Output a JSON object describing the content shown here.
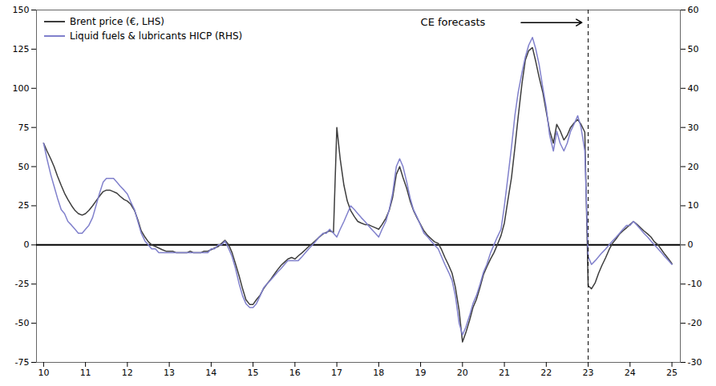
{
  "chart_data": {
    "type": "line",
    "x": [
      10.0,
      10.08,
      10.17,
      10.25,
      10.33,
      10.42,
      10.5,
      10.58,
      10.67,
      10.75,
      10.83,
      10.92,
      11.0,
      11.08,
      11.17,
      11.25,
      11.33,
      11.42,
      11.5,
      11.58,
      11.67,
      11.75,
      11.83,
      11.92,
      12.0,
      12.08,
      12.17,
      12.25,
      12.33,
      12.42,
      12.5,
      12.58,
      12.67,
      12.75,
      12.83,
      12.92,
      13.0,
      13.08,
      13.17,
      13.25,
      13.33,
      13.42,
      13.5,
      13.58,
      13.67,
      13.75,
      13.83,
      13.92,
      14.0,
      14.08,
      14.17,
      14.25,
      14.33,
      14.42,
      14.5,
      14.58,
      14.67,
      14.75,
      14.83,
      14.92,
      15.0,
      15.08,
      15.17,
      15.25,
      15.33,
      15.42,
      15.5,
      15.58,
      15.67,
      15.75,
      15.83,
      15.92,
      16.0,
      16.08,
      16.17,
      16.25,
      16.33,
      16.42,
      16.5,
      16.58,
      16.67,
      16.75,
      16.83,
      16.92,
      17.0,
      17.08,
      17.17,
      17.25,
      17.33,
      17.42,
      17.5,
      17.58,
      17.67,
      17.75,
      17.83,
      17.92,
      18.0,
      18.08,
      18.17,
      18.25,
      18.33,
      18.42,
      18.5,
      18.58,
      18.67,
      18.75,
      18.83,
      18.92,
      19.0,
      19.08,
      19.17,
      19.25,
      19.33,
      19.42,
      19.5,
      19.58,
      19.67,
      19.75,
      19.83,
      19.92,
      20.0,
      20.08,
      20.17,
      20.25,
      20.33,
      20.42,
      20.5,
      20.58,
      20.67,
      20.75,
      20.83,
      20.92,
      21.0,
      21.08,
      21.17,
      21.25,
      21.33,
      21.42,
      21.5,
      21.58,
      21.67,
      21.75,
      21.83,
      21.92,
      22.0,
      22.08,
      22.17,
      22.25,
      22.33,
      22.42,
      22.5,
      22.58,
      22.67,
      22.75,
      22.83,
      22.92,
      23.0,
      23.08,
      23.17,
      23.25,
      23.33,
      23.42,
      23.5,
      23.58,
      23.67,
      23.75,
      23.83,
      23.92,
      24.0,
      24.08,
      24.17,
      24.25,
      24.33,
      24.42,
      24.5,
      24.58,
      24.67,
      24.75,
      24.83,
      24.92,
      25.0
    ],
    "series": [
      {
        "name": "Brent price (€, LHS)",
        "color": "#3d3d3d",
        "axis": "y",
        "values": [
          65,
          60,
          55,
          50,
          44,
          38,
          33,
          29,
          25,
          22,
          20,
          19,
          20,
          22,
          25,
          28,
          31,
          34,
          35,
          35,
          34,
          33,
          31,
          29,
          28,
          26,
          22,
          16,
          9,
          5,
          2,
          0,
          -1,
          -2,
          -3,
          -4,
          -4,
          -4,
          -5,
          -5,
          -5,
          -5,
          -4,
          -5,
          -5,
          -5,
          -4,
          -4,
          -3,
          -2,
          -1,
          1,
          3,
          0,
          -5,
          -12,
          -20,
          -28,
          -35,
          -38,
          -38,
          -35,
          -32,
          -28,
          -25,
          -22,
          -19,
          -16,
          -13,
          -11,
          -9,
          -8,
          -9,
          -7,
          -5,
          -3,
          -1,
          1,
          3,
          5,
          7,
          8,
          9,
          8,
          75,
          55,
          38,
          28,
          22,
          18,
          15,
          14,
          13,
          13,
          12,
          11,
          10,
          13,
          17,
          22,
          30,
          45,
          50,
          43,
          36,
          28,
          22,
          17,
          13,
          9,
          6,
          4,
          2,
          1,
          -3,
          -8,
          -13,
          -18,
          -27,
          -42,
          -62,
          -56,
          -48,
          -40,
          -35,
          -27,
          -19,
          -14,
          -9,
          -5,
          0,
          6,
          14,
          28,
          43,
          62,
          82,
          103,
          118,
          124,
          126,
          117,
          107,
          97,
          85,
          73,
          65,
          77,
          73,
          67,
          70,
          75,
          78,
          80,
          77,
          72,
          -26,
          -28,
          -24,
          -18,
          -13,
          -8,
          -3,
          1,
          4,
          7,
          9,
          11,
          13,
          15,
          13,
          11,
          9,
          7,
          5,
          2,
          0,
          -3,
          -6,
          -9,
          -12
        ]
      },
      {
        "name": "Liquid fuels & lubricants HICP (RHS)",
        "color": "#8080cc",
        "axis": "y2",
        "values": [
          26,
          22,
          18,
          15,
          12,
          9,
          8,
          6,
          5,
          4,
          3,
          3,
          4,
          5,
          7,
          10,
          13,
          16,
          17,
          17,
          17,
          16,
          15,
          14,
          13,
          11,
          9,
          6,
          3,
          1,
          0,
          -1,
          -1,
          -2,
          -2,
          -2,
          -2,
          -2,
          -2,
          -2,
          -2,
          -2,
          -2,
          -2,
          -2,
          -2,
          -2,
          -2,
          -1,
          -1,
          0,
          0,
          1,
          -1,
          -3,
          -6,
          -10,
          -13,
          -15,
          -16,
          -16,
          -15,
          -13,
          -11,
          -10,
          -9,
          -8,
          -7,
          -6,
          -5,
          -4,
          -4,
          -4,
          -4,
          -3,
          -2,
          -1,
          0,
          1,
          2,
          3,
          3,
          4,
          3,
          2,
          4,
          6,
          8,
          10,
          9,
          8,
          7,
          6,
          5,
          4,
          3,
          2,
          4,
          6,
          9,
          13,
          20,
          22,
          20,
          16,
          12,
          9,
          7,
          5,
          3,
          2,
          1,
          0,
          -1,
          -3,
          -5,
          -7,
          -9,
          -13,
          -20,
          -23,
          -21,
          -18,
          -15,
          -13,
          -10,
          -7,
          -5,
          -2,
          0,
          2,
          4,
          10,
          17,
          25,
          33,
          39,
          44,
          48,
          51,
          53,
          50,
          46,
          40,
          35,
          28,
          24,
          29,
          26,
          24,
          26,
          29,
          31,
          33,
          30,
          24,
          -3,
          -5,
          -4,
          -3,
          -2,
          -1,
          0,
          1,
          2,
          3,
          4,
          5,
          5,
          6,
          5,
          4,
          3,
          2,
          1,
          0,
          -1,
          -2,
          -3,
          -4,
          -5
        ]
      }
    ],
    "xlim": [
      9.83,
      25.2
    ],
    "xticks": [
      10,
      11,
      12,
      13,
      14,
      15,
      16,
      17,
      18,
      19,
      20,
      21,
      22,
      23,
      24,
      25
    ],
    "ylim": [
      -75,
      150
    ],
    "yticks": [
      -75,
      -50,
      -25,
      0,
      25,
      50,
      75,
      100,
      125,
      150
    ],
    "y2lim": [
      -30,
      60
    ],
    "y2ticks": [
      -30,
      -20,
      -10,
      0,
      10,
      20,
      30,
      40,
      50,
      60
    ],
    "hlines": [
      {
        "y": 0,
        "color": "#000000"
      }
    ],
    "vlines": [
      {
        "x": 23.0,
        "color": "#000000",
        "line_style": "dashed"
      }
    ],
    "annotations": [
      {
        "text": "CE forecasts",
        "x": 19.0,
        "y": 142,
        "arrow_x1": 21.4,
        "arrow_x2": 22.85
      }
    ],
    "legend": "upper left",
    "grid": false
  }
}
